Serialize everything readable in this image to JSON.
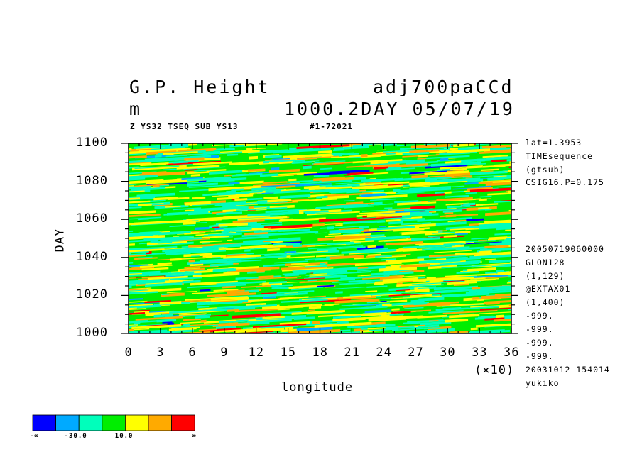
{
  "header": {
    "title_left": "G.P. Height",
    "title_right": "adj700paCCd",
    "units": "m",
    "subtitle_right": "1000.2DAY 05/07/19",
    "small_left": "Z YS32 TSEQ SUB YS13",
    "small_right": "#1-72021"
  },
  "side_info": [
    "lat=1.3953",
    "TIMEsequence",
    "(gtsub)",
    "CSIG16.P=0.175",
    "20050719060000",
    "GLON128",
    "(1,129)",
    "@EXTAX01",
    "(1,400)",
    "-999.",
    "-999.",
    "-999.",
    "-999.",
    "20031012 154014",
    "yukiko"
  ],
  "colorbar": {
    "colors": [
      "#0000ff",
      "#00aaff",
      "#00ffbb",
      "#00ee00",
      "#ffff00",
      "#ffaa00",
      "#ff0000"
    ],
    "labels": [
      "-∞",
      "-30.0",
      "10.0",
      "∞"
    ]
  },
  "chart_data": {
    "type": "heatmap",
    "xlabel": "longitude",
    "ylabel": "DAY",
    "x_multiplier_label": "(×10)",
    "xlim": [
      0,
      36
    ],
    "ylim": [
      1000,
      1100
    ],
    "x_ticks": [
      "0",
      "3",
      "6",
      "9",
      "12",
      "15",
      "18",
      "21",
      "24",
      "27",
      "30",
      "33",
      "36"
    ],
    "y_ticks": [
      "1000",
      "1020",
      "1040",
      "1060",
      "1080",
      "1100"
    ],
    "color_levels": [
      "-∞",
      "-30.0",
      "10.0",
      "∞"
    ]
  }
}
